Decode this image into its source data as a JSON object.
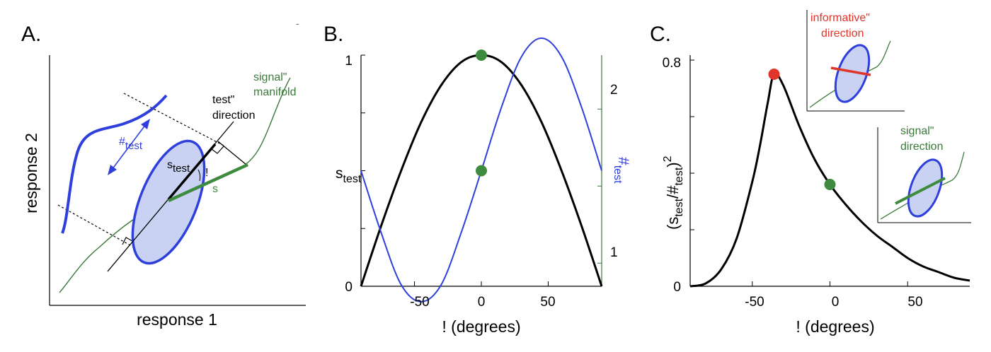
{
  "figure": {
    "panels": [
      {
        "letter": "A."
      },
      {
        "letter": "B."
      },
      {
        "letter": "C."
      }
    ]
  },
  "panel_a": {
    "xlabel": "response 1",
    "ylabel": "response 2",
    "noise_label": "#",
    "noise_sub": "test",
    "test_direction_label": [
      "test\"",
      "direction"
    ],
    "manifold_label": [
      "signal\"",
      "manifold"
    ],
    "s_test_label": "s",
    "s_test_sub": "test",
    "s_label": "s",
    "angle_label": "!",
    "colors": {
      "noise": "#2f3fdc",
      "ellipse_fill": "#c9d2f2",
      "manifold": "#3b7a3b",
      "signal": "#3e8a3e"
    }
  },
  "panel_b": {
    "xlabel": "!  (degrees)",
    "ylabel_left": "s",
    "ylabel_left_sub": "test",
    "ylabel_right": "#",
    "ylabel_right_sub": "test",
    "xticks": [
      "-50",
      "0",
      "50"
    ],
    "yticks_left": [
      "0",
      "1"
    ],
    "yticks_right": [
      "1",
      "2"
    ]
  },
  "panel_c": {
    "ylabel_open": "(s",
    "ylabel_sub1": "test",
    "ylabel_mid": "/#",
    "ylabel_sub2": "test",
    "ylabel_close": ")",
    "ylabel_sup": "2",
    "xlabel": "!  (degrees)",
    "xticks": [
      "-50",
      "0",
      "50"
    ],
    "yticks": [
      "0",
      "0.8"
    ],
    "inset1_label": [
      "informative\"",
      "direction"
    ],
    "inset2_label": [
      "signal\"",
      "direction"
    ],
    "colors": {
      "informative": "#e0352b",
      "signal": "#3e8a3e"
    }
  },
  "chart_data": [
    {
      "type": "line",
      "xlabel": "!  (degrees)",
      "xlim": [
        -90,
        90
      ],
      "series": [
        {
          "name": "s_test",
          "axis": "left",
          "color": "#000000",
          "x": [
            -90,
            -75,
            -60,
            -45,
            -30,
            -15,
            0,
            15,
            30,
            45,
            60,
            75,
            90
          ],
          "y": [
            0.0,
            0.26,
            0.5,
            0.71,
            0.87,
            0.97,
            1.0,
            0.97,
            0.87,
            0.71,
            0.5,
            0.26,
            0.0
          ]
        },
        {
          "name": "#test",
          "axis": "right",
          "color": "#2f3fdc",
          "x": [
            -90,
            -75,
            -60,
            -45,
            -30,
            -15,
            0,
            15,
            30,
            45,
            60,
            75,
            90
          ],
          "y": [
            1.6,
            1.2,
            0.86,
            0.75,
            0.86,
            1.2,
            1.6,
            2.01,
            2.34,
            2.46,
            2.34,
            2.01,
            1.6
          ]
        }
      ],
      "markers": [
        {
          "x": 0,
          "y": 1.0,
          "axis": "left",
          "color": "#3e8a3e"
        },
        {
          "x": 0,
          "y": 1.6,
          "axis": "right",
          "color": "#3e8a3e"
        }
      ],
      "ylim_left": [
        0,
        1
      ],
      "ylim_right": [
        0.85,
        2.35
      ]
    },
    {
      "type": "line",
      "xlabel": "!  (degrees)",
      "xlim": [
        -90,
        90
      ],
      "ylim": [
        0,
        0.8
      ],
      "series": [
        {
          "color": "#000000",
          "x": [
            -90,
            -80,
            -70,
            -60,
            -50,
            -45,
            -40,
            -36,
            -30,
            -20,
            -10,
            0,
            10,
            20,
            30,
            40,
            50,
            60,
            70,
            80,
            90
          ],
          "y": [
            0.0,
            0.01,
            0.06,
            0.17,
            0.37,
            0.5,
            0.65,
            0.75,
            0.71,
            0.57,
            0.45,
            0.36,
            0.29,
            0.23,
            0.18,
            0.14,
            0.1,
            0.07,
            0.05,
            0.03,
            0.02
          ]
        }
      ],
      "markers": [
        {
          "x": -36,
          "y": 0.75,
          "color": "#e0352b"
        },
        {
          "x": 0,
          "y": 0.36,
          "color": "#3e8a3e"
        }
      ]
    }
  ]
}
